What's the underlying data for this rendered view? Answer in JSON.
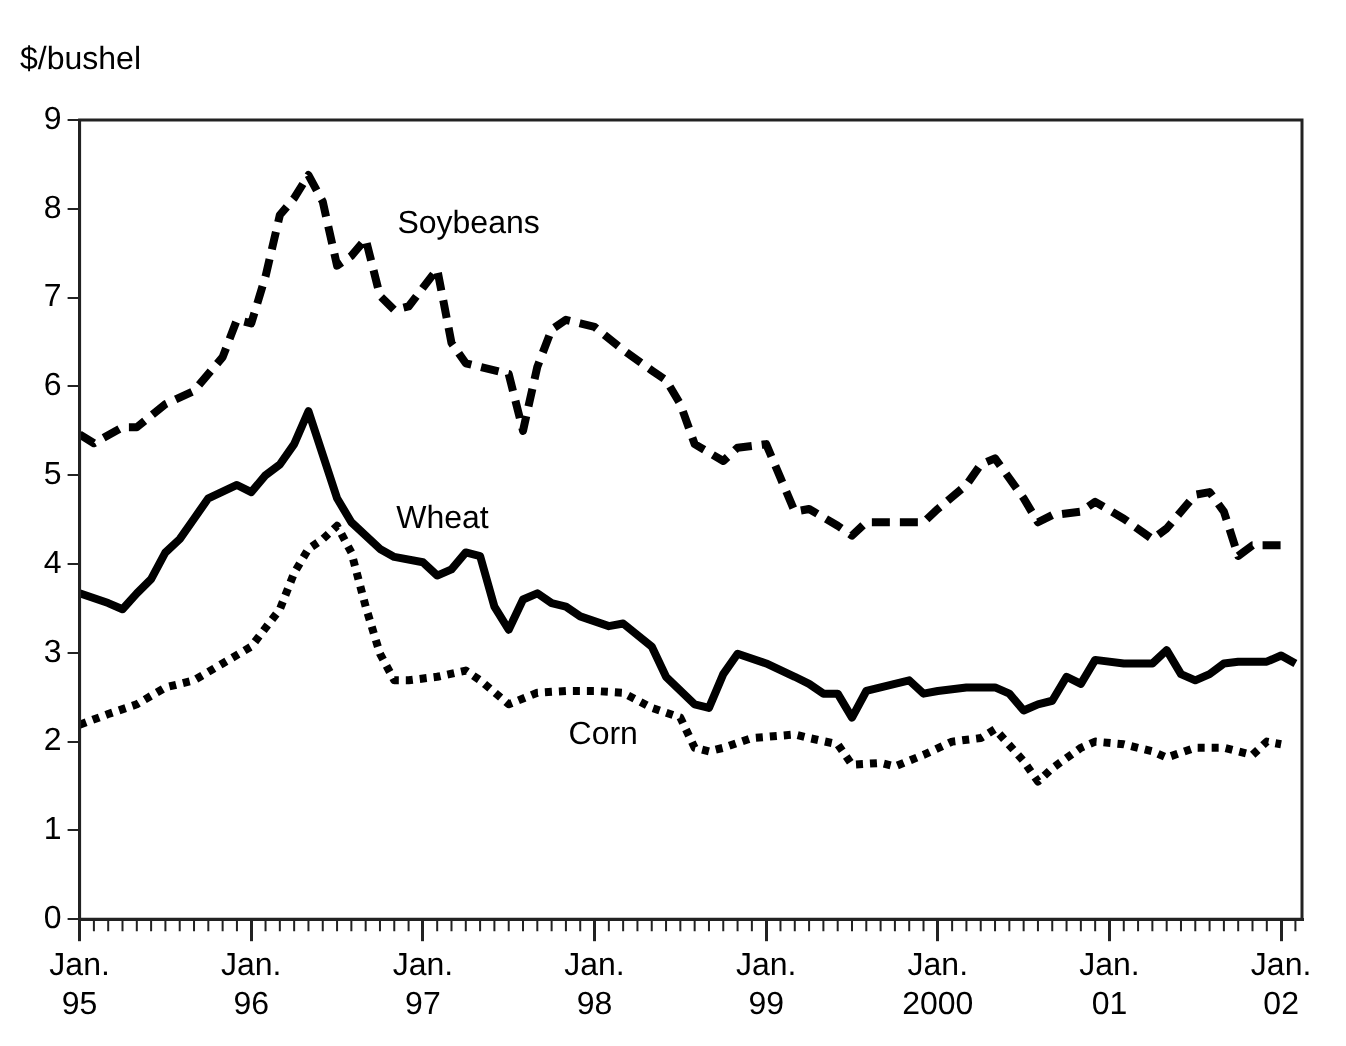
{
  "chart_data": {
    "type": "line",
    "ylabel": "$/bushel",
    "grid": false,
    "legend": false,
    "xlim": [
      "1995-01",
      "2002-02-15"
    ],
    "ylim": [
      0,
      9
    ],
    "yticks": [
      0,
      1,
      2,
      3,
      4,
      5,
      6,
      7,
      8,
      9
    ],
    "xticks": [
      {
        "value": "1995-01",
        "label": "Jan. 95"
      },
      {
        "value": "1996-01",
        "label": "Jan. 96"
      },
      {
        "value": "1997-01",
        "label": "Jan. 97"
      },
      {
        "value": "1998-01",
        "label": "Jan. 98"
      },
      {
        "value": "1999-01",
        "label": "Jan. 99"
      },
      {
        "value": "2000-01",
        "label": "Jan. 2000"
      },
      {
        "value": "2001-01",
        "label": "Jan. 01"
      },
      {
        "value": "2002-01",
        "label": "Jan. 02"
      }
    ],
    "series": [
      {
        "name": "Soybeans",
        "color": "#000000",
        "line_style": "dashed",
        "x": [
          "1995-01",
          "1995-02",
          "1995-04",
          "1995-05",
          "1995-07",
          "1995-09",
          "1995-11",
          "1995-12",
          "1996-01",
          "1996-02",
          "1996-03",
          "1996-04",
          "1996-05",
          "1996-06",
          "1996-07",
          "1996-08",
          "1996-09",
          "1996-10",
          "1996-11",
          "1996-12",
          "1997-02",
          "1997-03",
          "1997-04",
          "1997-05",
          "1997-07",
          "1997-08",
          "1997-09",
          "1997-10",
          "1997-11",
          "1997-12",
          "1998-01",
          "1998-03",
          "1998-05",
          "1998-06",
          "1998-07",
          "1998-08",
          "1998-10",
          "1998-11",
          "1999-01",
          "1999-02",
          "1999-03",
          "1999-04",
          "1999-06",
          "1999-07",
          "1999-08",
          "1999-10",
          "1999-12",
          "2000-01",
          "2000-03",
          "2000-04",
          "2000-05",
          "2000-07",
          "2000-08",
          "2000-09",
          "2000-11",
          "2000-12",
          "2001-02",
          "2001-04",
          "2001-05",
          "2001-07",
          "2001-08",
          "2001-09",
          "2001-10",
          "2001-11",
          "2002-01"
        ],
        "values": [
          5.46,
          5.36,
          5.54,
          5.54,
          5.8,
          5.95,
          6.33,
          6.75,
          6.71,
          7.24,
          7.93,
          8.12,
          8.38,
          8.08,
          7.36,
          7.47,
          7.66,
          7.02,
          6.86,
          6.9,
          7.32,
          6.49,
          6.26,
          6.22,
          6.14,
          5.5,
          6.22,
          6.64,
          6.75,
          6.71,
          6.67,
          6.41,
          6.18,
          6.07,
          5.8,
          5.35,
          5.16,
          5.31,
          5.35,
          4.97,
          4.59,
          4.62,
          4.43,
          4.32,
          4.47,
          4.47,
          4.47,
          4.62,
          4.89,
          5.12,
          5.19,
          4.74,
          4.47,
          4.55,
          4.59,
          4.7,
          4.51,
          4.28,
          4.4,
          4.78,
          4.81,
          4.59,
          4.09,
          4.21,
          4.21
        ]
      },
      {
        "name": "Wheat",
        "color": "#000000",
        "line_style": "solid",
        "x": [
          "1995-01",
          "1995-03",
          "1995-04",
          "1995-05",
          "1995-06",
          "1995-07",
          "1995-08",
          "1995-09",
          "1995-10",
          "1995-12",
          "1996-01",
          "1996-02",
          "1996-03",
          "1996-04",
          "1996-05",
          "1996-07",
          "1996-08",
          "1996-10",
          "1996-11",
          "1997-01",
          "1997-02",
          "1997-03",
          "1997-04",
          "1997-05",
          "1997-06",
          "1997-07",
          "1997-08",
          "1997-09",
          "1997-10",
          "1997-11",
          "1997-12",
          "1998-02",
          "1998-03",
          "1998-05",
          "1998-06",
          "1998-08",
          "1998-09",
          "1998-10",
          "1998-11",
          "1999-01",
          "1999-03",
          "1999-04",
          "1999-05",
          "1999-06",
          "1999-07",
          "1999-08",
          "1999-09",
          "1999-11",
          "1999-12",
          "2000-01",
          "2000-03",
          "2000-05",
          "2000-06",
          "2000-07",
          "2000-08",
          "2000-09",
          "2000-10",
          "2000-11",
          "2000-12",
          "2001-02",
          "2001-04",
          "2001-05",
          "2001-06",
          "2001-07",
          "2001-08",
          "2001-09",
          "2001-10",
          "2001-12",
          "2002-01",
          "2002-02"
        ],
        "values": [
          3.67,
          3.56,
          3.49,
          3.67,
          3.83,
          4.13,
          4.28,
          4.51,
          4.74,
          4.89,
          4.81,
          5.0,
          5.12,
          5.35,
          5.72,
          4.74,
          4.47,
          4.17,
          4.08,
          4.02,
          3.87,
          3.94,
          4.13,
          4.09,
          3.52,
          3.26,
          3.6,
          3.67,
          3.56,
          3.52,
          3.41,
          3.3,
          3.33,
          3.07,
          2.73,
          2.42,
          2.38,
          2.76,
          2.99,
          2.88,
          2.73,
          2.65,
          2.54,
          2.54,
          2.27,
          2.57,
          2.61,
          2.69,
          2.54,
          2.57,
          2.61,
          2.61,
          2.54,
          2.35,
          2.42,
          2.46,
          2.73,
          2.65,
          2.92,
          2.88,
          2.88,
          3.03,
          2.76,
          2.69,
          2.76,
          2.88,
          2.9,
          2.9,
          2.97,
          2.88
        ]
      },
      {
        "name": "Corn",
        "color": "#000000",
        "line_style": "dotted",
        "x": [
          "1995-01",
          "1995-03",
          "1995-05",
          "1995-07",
          "1995-09",
          "1995-11",
          "1996-01",
          "1996-03",
          "1996-04",
          "1996-05",
          "1996-06",
          "1996-07",
          "1996-08",
          "1996-09",
          "1996-10",
          "1996-11",
          "1996-12",
          "1997-02",
          "1997-04",
          "1997-05",
          "1997-07",
          "1997-09",
          "1997-11",
          "1998-01",
          "1998-03",
          "1998-05",
          "1998-07",
          "1998-08",
          "1998-09",
          "1998-10",
          "1998-12",
          "1999-03",
          "1999-04",
          "1999-06",
          "1999-07",
          "1999-09",
          "1999-10",
          "1999-12",
          "2000-02",
          "2000-04",
          "2000-05",
          "2000-07",
          "2000-08",
          "2000-09",
          "2000-11",
          "2000-12",
          "2001-02",
          "2001-04",
          "2001-05",
          "2001-07",
          "2001-09",
          "2001-11",
          "2001-12",
          "2002-01"
        ],
        "values": [
          2.19,
          2.31,
          2.42,
          2.61,
          2.69,
          2.88,
          3.07,
          3.49,
          3.9,
          4.17,
          4.28,
          4.43,
          4.13,
          3.52,
          2.99,
          2.69,
          2.69,
          2.73,
          2.8,
          2.69,
          2.42,
          2.55,
          2.57,
          2.57,
          2.55,
          2.38,
          2.27,
          1.93,
          1.89,
          1.93,
          2.04,
          2.08,
          2.04,
          1.97,
          1.74,
          1.76,
          1.72,
          1.85,
          2.0,
          2.04,
          2.14,
          1.78,
          1.55,
          1.7,
          1.93,
          2.0,
          1.97,
          1.89,
          1.82,
          1.93,
          1.93,
          1.85,
          2.0,
          1.97
        ]
      }
    ]
  }
}
